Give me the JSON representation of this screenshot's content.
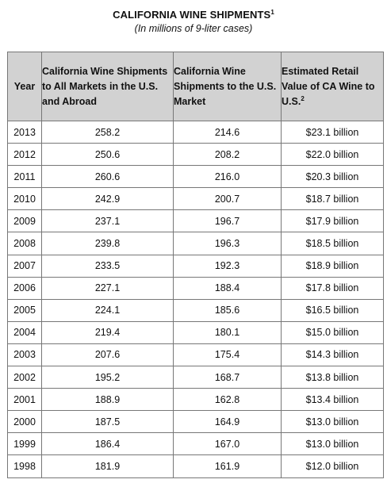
{
  "title": "CALIFORNIA WINE SHIPMENTS",
  "title_footnote": "1",
  "subtitle": "(In millions of 9-liter cases)",
  "columns": {
    "year": "Year",
    "all_markets": "California Wine Shipments to All Markets in the U.S. and Abroad",
    "us_market": "California Wine Shipments to the U.S. Market",
    "retail_value": "Estimated Retail Value of CA Wine to U.S.",
    "retail_value_footnote": "2"
  },
  "rows": [
    {
      "year": "2013",
      "all": "258.2",
      "us": "214.6",
      "value": "$23.1 billion"
    },
    {
      "year": "2012",
      "all": "250.6",
      "us": "208.2",
      "value": "$22.0 billion"
    },
    {
      "year": "2011",
      "all": "260.6",
      "us": "216.0",
      "value": "$20.3 billion"
    },
    {
      "year": "2010",
      "all": "242.9",
      "us": "200.7",
      "value": "$18.7 billion"
    },
    {
      "year": "2009",
      "all": "237.1",
      "us": "196.7",
      "value": "$17.9 billion"
    },
    {
      "year": "2008",
      "all": "239.8",
      "us": "196.3",
      "value": "$18.5 billion"
    },
    {
      "year": "2007",
      "all": "233.5",
      "us": "192.3",
      "value": "$18.9 billion"
    },
    {
      "year": "2006",
      "all": "227.1",
      "us": "188.4",
      "value": "$17.8 billion"
    },
    {
      "year": "2005",
      "all": "224.1",
      "us": "185.6",
      "value": "$16.5 billion"
    },
    {
      "year": "2004",
      "all": "219.4",
      "us": "180.1",
      "value": "$15.0 billion"
    },
    {
      "year": "2003",
      "all": "207.6",
      "us": "175.4",
      "value": "$14.3 billion"
    },
    {
      "year": "2002",
      "all": "195.2",
      "us": "168.7",
      "value": "$13.8 billion"
    },
    {
      "year": "2001",
      "all": "188.9",
      "us": "162.8",
      "value": "$13.4 billion"
    },
    {
      "year": "2000",
      "all": "187.5",
      "us": "164.9",
      "value": "$13.0 billion"
    },
    {
      "year": "1999",
      "all": "186.4",
      "us": "167.0",
      "value": "$13.0 billion"
    },
    {
      "year": "1998",
      "all": "181.9",
      "us": "161.9",
      "value": "$12.0 billion"
    }
  ],
  "colors": {
    "header_background": "#d2d2d2",
    "border": "#777777"
  }
}
